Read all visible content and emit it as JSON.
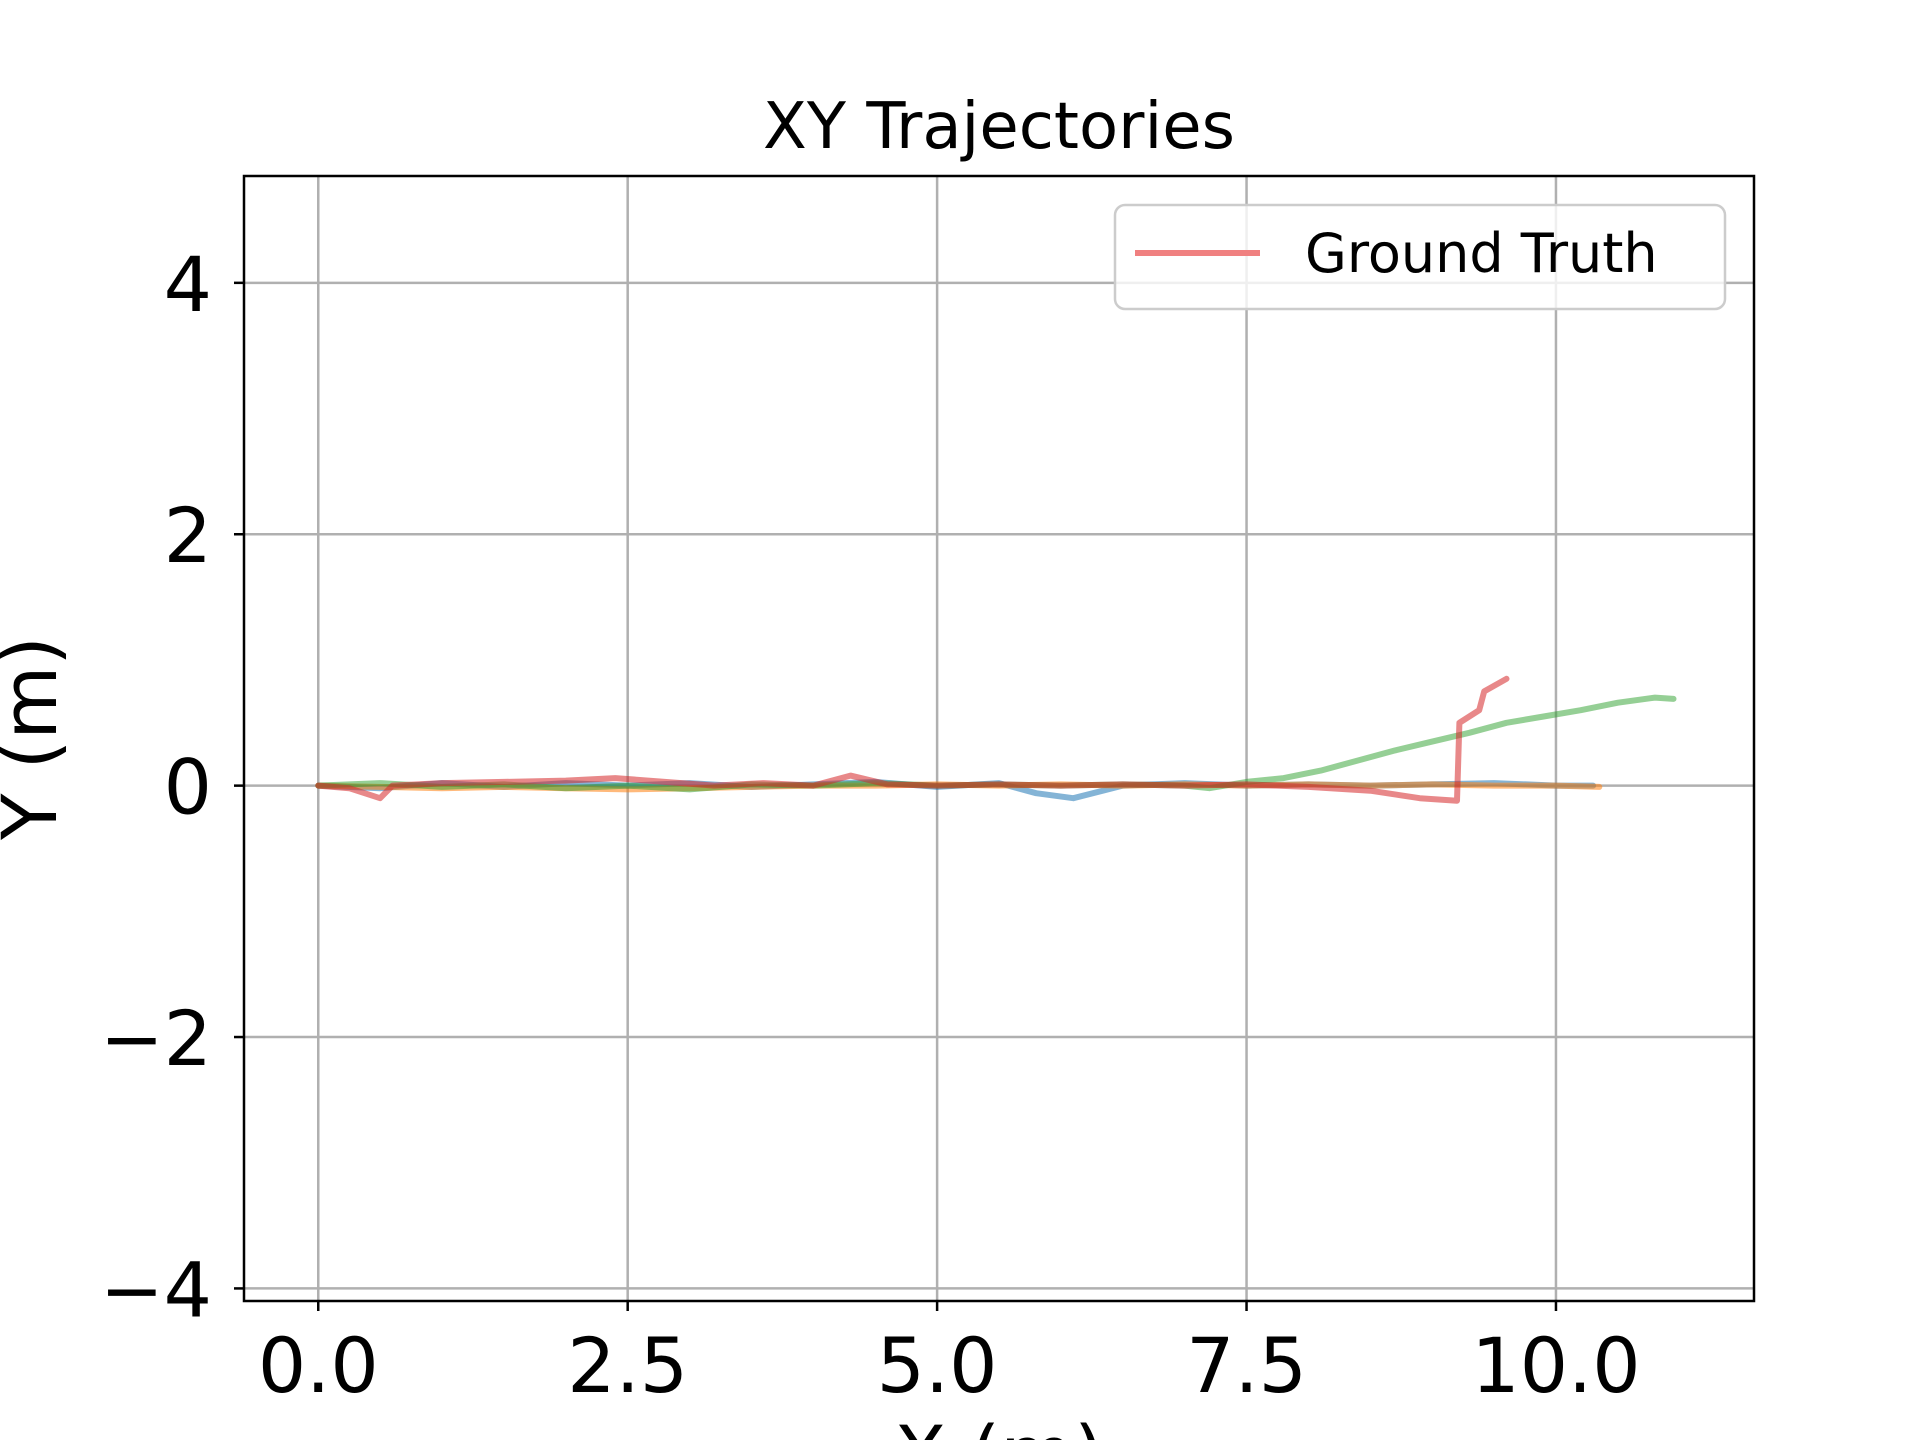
{
  "chart_data": {
    "type": "line",
    "title": "XY Trajectories",
    "xlabel": "X (m)",
    "ylabel": "Y (m)",
    "xlim": [
      -0.6,
      11.6
    ],
    "ylim": [
      -4.1,
      4.85
    ],
    "xticks": [
      {
        "value": 0.0,
        "label": "0.0"
      },
      {
        "value": 2.5,
        "label": "2.5"
      },
      {
        "value": 5.0,
        "label": "5.0"
      },
      {
        "value": 7.5,
        "label": "7.5"
      },
      {
        "value": 10.0,
        "label": "10.0"
      }
    ],
    "yticks": [
      {
        "value": -4,
        "label": "−4"
      },
      {
        "value": -2,
        "label": "−2"
      },
      {
        "value": 0,
        "label": "0"
      },
      {
        "value": 2,
        "label": "2"
      },
      {
        "value": 4,
        "label": "4"
      }
    ],
    "grid": true,
    "legend": {
      "placement": "top-right",
      "entries": [
        {
          "label": "Ground Truth",
          "color": "#f08080"
        }
      ]
    },
    "series": [
      {
        "color": "#1f77b4",
        "opacity": 0.55,
        "points": [
          [
            0,
            0
          ],
          [
            0.5,
            -0.02
          ],
          [
            1.0,
            0.02
          ],
          [
            1.5,
            -0.01
          ],
          [
            2.0,
            0.02
          ],
          [
            2.5,
            0.0
          ],
          [
            3.0,
            0.02
          ],
          [
            3.5,
            -0.01
          ],
          [
            4.0,
            0.01
          ],
          [
            4.5,
            0.03
          ],
          [
            5.0,
            -0.01
          ],
          [
            5.5,
            0.02
          ],
          [
            5.8,
            -0.06
          ],
          [
            6.1,
            -0.1
          ],
          [
            6.5,
            0.0
          ],
          [
            7.0,
            0.02
          ],
          [
            7.5,
            0.0
          ],
          [
            8.0,
            0.01
          ],
          [
            8.5,
            0.0
          ],
          [
            9.0,
            0.01
          ],
          [
            9.5,
            0.02
          ],
          [
            10.0,
            0.0
          ],
          [
            10.3,
            0.0
          ]
        ]
      },
      {
        "color": "#ff7f0e",
        "opacity": 0.55,
        "points": [
          [
            0,
            0
          ],
          [
            0.5,
            -0.01
          ],
          [
            1.0,
            -0.02
          ],
          [
            1.5,
            -0.01
          ],
          [
            2.0,
            -0.02
          ],
          [
            2.5,
            -0.03
          ],
          [
            3.0,
            -0.02
          ],
          [
            3.5,
            -0.01
          ],
          [
            4.0,
            0.0
          ],
          [
            4.5,
            0.0
          ],
          [
            5.0,
            0.01
          ],
          [
            5.5,
            0.0
          ],
          [
            6.0,
            0.01
          ],
          [
            6.5,
            0.0
          ],
          [
            7.0,
            0.01
          ],
          [
            7.5,
            0.0
          ],
          [
            8.0,
            0.01
          ],
          [
            8.5,
            0.0
          ],
          [
            9.0,
            0.01
          ],
          [
            9.5,
            0.0
          ],
          [
            10.0,
            0.0
          ],
          [
            10.35,
            -0.01
          ]
        ]
      },
      {
        "color": "#2ca02c",
        "opacity": 0.5,
        "points": [
          [
            0,
            0
          ],
          [
            0.5,
            0.02
          ],
          [
            1.0,
            -0.01
          ],
          [
            1.5,
            0.01
          ],
          [
            2.0,
            -0.02
          ],
          [
            2.5,
            0.0
          ],
          [
            3.0,
            -0.03
          ],
          [
            3.5,
            0.01
          ],
          [
            4.0,
            0.0
          ],
          [
            4.5,
            0.02
          ],
          [
            5.0,
            0.0
          ],
          [
            5.5,
            0.01
          ],
          [
            6.0,
            0.0
          ],
          [
            6.5,
            0.01
          ],
          [
            7.0,
            0.0
          ],
          [
            7.2,
            -0.02
          ],
          [
            7.5,
            0.03
          ],
          [
            7.8,
            0.06
          ],
          [
            8.1,
            0.12
          ],
          [
            8.4,
            0.2
          ],
          [
            8.7,
            0.28
          ],
          [
            9.0,
            0.35
          ],
          [
            9.3,
            0.42
          ],
          [
            9.6,
            0.5
          ],
          [
            9.9,
            0.55
          ],
          [
            10.2,
            0.6
          ],
          [
            10.5,
            0.66
          ],
          [
            10.8,
            0.7
          ],
          [
            10.95,
            0.69
          ]
        ]
      },
      {
        "color": "#d62728",
        "opacity": 0.55,
        "points": [
          [
            0,
            0
          ],
          [
            0.25,
            -0.02
          ],
          [
            0.5,
            -0.1
          ],
          [
            0.6,
            0.0
          ],
          [
            1.0,
            0.02
          ],
          [
            1.5,
            0.03
          ],
          [
            2.0,
            0.04
          ],
          [
            2.4,
            0.06
          ],
          [
            2.8,
            0.03
          ],
          [
            3.2,
            0.0
          ],
          [
            3.6,
            0.02
          ],
          [
            4.0,
            0.0
          ],
          [
            4.3,
            0.08
          ],
          [
            4.6,
            0.01
          ],
          [
            5.0,
            0.0
          ],
          [
            5.5,
            0.01
          ],
          [
            6.0,
            0.0
          ],
          [
            6.5,
            0.01
          ],
          [
            7.0,
            0.0
          ],
          [
            7.5,
            0.01
          ],
          [
            8.0,
            -0.01
          ],
          [
            8.5,
            -0.04
          ],
          [
            8.9,
            -0.1
          ],
          [
            9.2,
            -0.12
          ],
          [
            9.22,
            0.5
          ],
          [
            9.38,
            0.6
          ],
          [
            9.42,
            0.75
          ],
          [
            9.6,
            0.85
          ]
        ]
      }
    ]
  }
}
